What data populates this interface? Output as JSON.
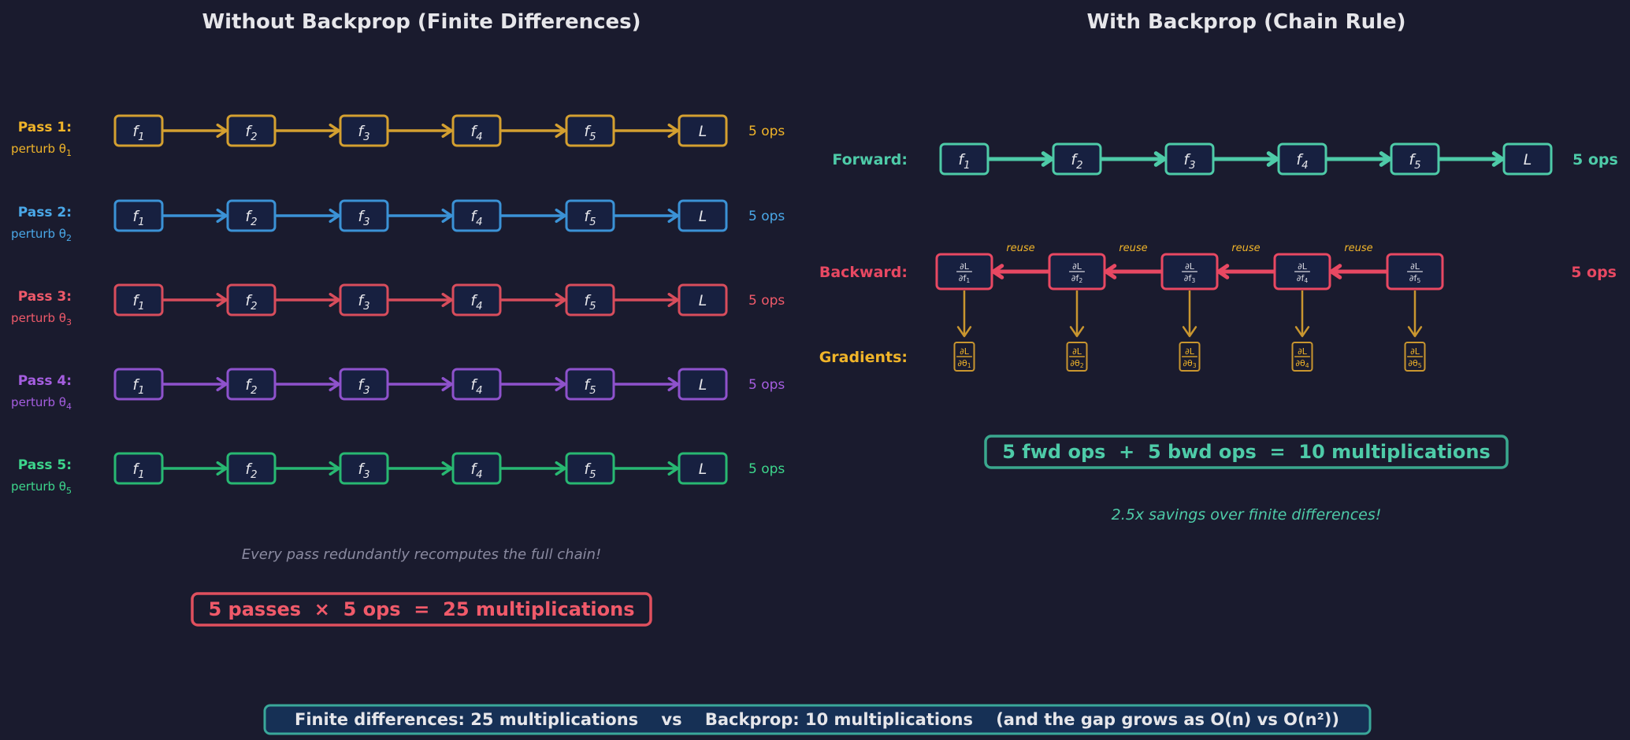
{
  "left": {
    "title": "Without Backprop (Finite Differences)",
    "passes": [
      {
        "label": "Pass 1:",
        "perturb": "perturb θ",
        "sub": "1",
        "ops": "5 ops",
        "color": "#d4a030",
        "text_color": "#f0b429"
      },
      {
        "label": "Pass 2:",
        "perturb": "perturb θ",
        "sub": "2",
        "ops": "5 ops",
        "color": "#3b92d6",
        "text_color": "#4aa8e8"
      },
      {
        "label": "Pass 3:",
        "perturb": "perturb θ",
        "sub": "3",
        "ops": "5 ops",
        "color": "#d84d5c",
        "text_color": "#f05a6a"
      },
      {
        "label": "Pass 4:",
        "perturb": "perturb θ",
        "sub": "4",
        "ops": "5 ops",
        "color": "#8e52cc",
        "text_color": "#a55ee0"
      },
      {
        "label": "Pass 5:",
        "perturb": "perturb θ",
        "sub": "5",
        "ops": "5 ops",
        "color": "#28b872",
        "text_color": "#3dd68c"
      }
    ],
    "nodes": [
      "f1",
      "f2",
      "f3",
      "f4",
      "f5",
      "L"
    ],
    "note": "Every pass redundantly recomputes the full chain!",
    "summary": "5 passes  ×  5 ops  =  25 multiplications",
    "summary_color": "#f05a6a"
  },
  "right": {
    "title": "With Backprop (Chain Rule)",
    "forward": {
      "label": "Forward:",
      "ops": "5 ops",
      "color": "#4ecba8",
      "nodes": [
        "f1",
        "f2",
        "f3",
        "f4",
        "f5",
        "L"
      ]
    },
    "backward": {
      "label": "Backward:",
      "ops": "5 ops",
      "color": "#e84862",
      "reuse": "reuse",
      "nodes": [
        "∂L/∂f1",
        "∂L/∂f2",
        "∂L/∂f3",
        "∂L/∂f4",
        "∂L/∂f5"
      ]
    },
    "gradients": {
      "label": "Gradients:",
      "color": "#f0b429",
      "nodes": [
        "∂L/∂θ1",
        "∂L/∂θ2",
        "∂L/∂θ3",
        "∂L/∂θ4",
        "∂L/∂θ5"
      ]
    },
    "summary": "5 fwd ops  +  5 bwd ops  =  10 multiplications",
    "savings": "2.5x savings over finite differences!"
  },
  "footer": "Finite differences: 25 multiplications    vs    Backprop: 10 multiplications    (and the gap grows as O(n) vs O(n²))"
}
